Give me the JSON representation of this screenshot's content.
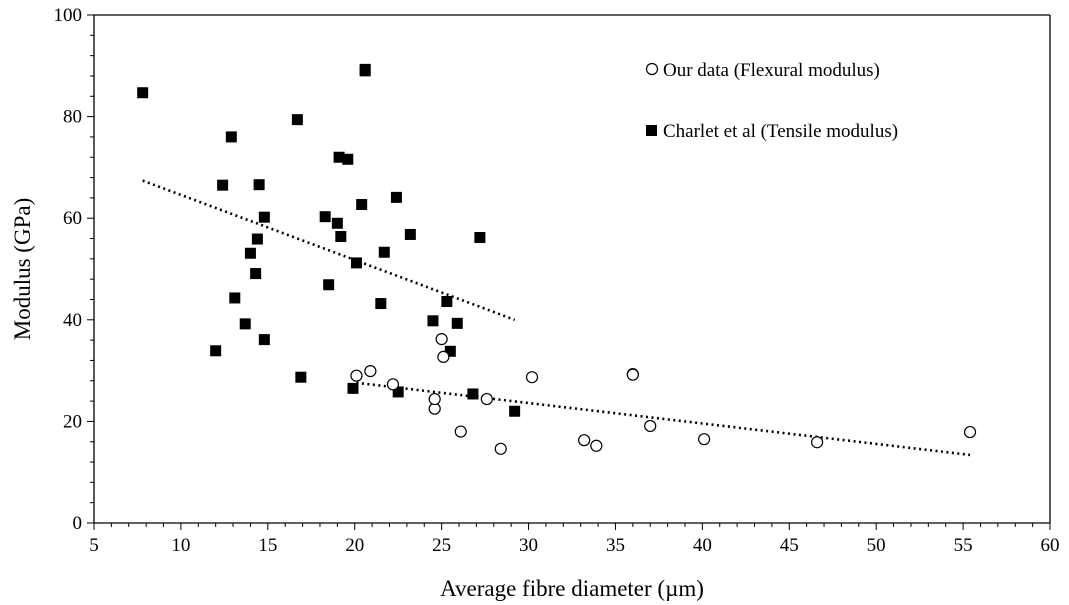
{
  "chart_data": {
    "type": "scatter",
    "title": "",
    "xlabel": "Average fibre diameter (µm)",
    "ylabel": "Modulus (GPa)",
    "xlim": [
      5,
      60
    ],
    "ylim": [
      0,
      100
    ],
    "xticks": [
      "5",
      "10",
      "15",
      "20",
      "25",
      "30",
      "35",
      "40",
      "45",
      "50",
      "55",
      "60"
    ],
    "yticks": [
      "0",
      "20",
      "40",
      "60",
      "80",
      "100"
    ],
    "grid": false,
    "legend_position": "top-right",
    "series": [
      {
        "name": "Our data (Flexural modulus)",
        "marker": "open-circle",
        "color": "#000000",
        "points": [
          [
            20.1,
            29.0
          ],
          [
            20.9,
            29.9
          ],
          [
            22.2,
            27.3
          ],
          [
            24.6,
            22.5
          ],
          [
            24.6,
            24.4
          ],
          [
            25.0,
            36.2
          ],
          [
            25.1,
            32.7
          ],
          [
            26.1,
            18.0
          ],
          [
            27.6,
            24.4
          ],
          [
            28.4,
            14.6
          ],
          [
            30.2,
            28.7
          ],
          [
            33.2,
            16.3
          ],
          [
            33.9,
            15.2
          ],
          [
            36.0,
            29.3
          ],
          [
            36.0,
            29.2
          ],
          [
            37.0,
            19.1
          ],
          [
            40.1,
            16.5
          ],
          [
            46.6,
            15.9
          ],
          [
            55.4,
            17.9
          ]
        ],
        "trendline": {
          "style": "dotted",
          "x": [
            20.1,
            55.4
          ],
          "y": [
            27.6,
            13.4
          ]
        }
      },
      {
        "name": "Charlet et al (Tensile modulus)",
        "marker": "filled-square",
        "color": "#000000",
        "points": [
          [
            7.8,
            84.7
          ],
          [
            12.0,
            33.9
          ],
          [
            12.4,
            66.5
          ],
          [
            12.9,
            76.0
          ],
          [
            13.1,
            44.3
          ],
          [
            13.7,
            39.2
          ],
          [
            14.0,
            53.1
          ],
          [
            14.3,
            49.1
          ],
          [
            14.4,
            55.9
          ],
          [
            14.5,
            66.6
          ],
          [
            14.8,
            60.2
          ],
          [
            14.8,
            36.1
          ],
          [
            16.7,
            79.4
          ],
          [
            16.9,
            28.7
          ],
          [
            18.3,
            60.3
          ],
          [
            18.5,
            46.9
          ],
          [
            19.0,
            59.0
          ],
          [
            19.1,
            72.0
          ],
          [
            19.2,
            56.4
          ],
          [
            19.6,
            71.6
          ],
          [
            19.9,
            26.5
          ],
          [
            20.1,
            51.2
          ],
          [
            20.4,
            62.7
          ],
          [
            20.6,
            89.0
          ],
          [
            20.6,
            89.3
          ],
          [
            21.5,
            43.2
          ],
          [
            21.7,
            53.3
          ],
          [
            22.4,
            64.1
          ],
          [
            22.5,
            25.8
          ],
          [
            23.2,
            56.8
          ],
          [
            24.5,
            39.8
          ],
          [
            25.3,
            43.6
          ],
          [
            25.5,
            33.8
          ],
          [
            25.9,
            39.3
          ],
          [
            26.8,
            25.4
          ],
          [
            27.2,
            56.2
          ],
          [
            29.2,
            22.0
          ]
        ],
        "trendline": {
          "style": "dotted",
          "x": [
            7.8,
            29.2
          ],
          "y": [
            67.4,
            40.0
          ]
        }
      }
    ]
  }
}
